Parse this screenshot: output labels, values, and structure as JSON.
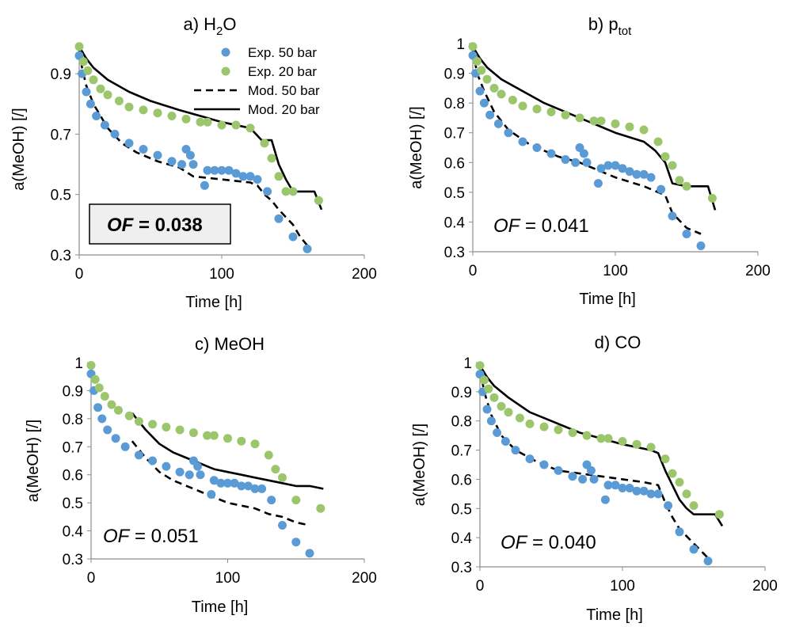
{
  "chart_data": [
    {
      "id": "a",
      "type": "scatter",
      "title": "a) H2O",
      "title_parts": {
        "prefix": "a) H",
        "sub": "2",
        "suffix": "O"
      },
      "xlabel": "Time [h]",
      "ylabel": "a(MeOH) [/]",
      "xlim": [
        0,
        200
      ],
      "ylim": [
        0.3,
        1.0
      ],
      "xticks": [
        "0",
        "100",
        "200"
      ],
      "yticks": [
        "0.3",
        "0.5",
        "0.7",
        "0.9"
      ],
      "grid": false,
      "legend": {
        "position": "top-right",
        "entries": [
          "Exp. 50 bar",
          "Exp. 20 bar",
          "Mod. 50 bar",
          "Mod. 20 bar"
        ]
      },
      "of_annotation": {
        "label": "OF",
        "value": "= 0.038",
        "boxed": true,
        "bold": true
      },
      "series": [
        {
          "name": "Exp. 50 bar",
          "kind": "scatter",
          "color": "#5b9bd5",
          "x": [
            0,
            2,
            5,
            8,
            12,
            18,
            25,
            35,
            45,
            55,
            65,
            72,
            75,
            78,
            80,
            88,
            90,
            95,
            100,
            105,
            110,
            115,
            120,
            125,
            132,
            140,
            150,
            160
          ],
          "y": [
            0.96,
            0.9,
            0.84,
            0.8,
            0.76,
            0.73,
            0.7,
            0.67,
            0.65,
            0.63,
            0.61,
            0.6,
            0.65,
            0.63,
            0.6,
            0.53,
            0.58,
            0.58,
            0.58,
            0.58,
            0.57,
            0.56,
            0.56,
            0.55,
            0.51,
            0.42,
            0.36,
            0.32
          ]
        },
        {
          "name": "Exp. 20 bar",
          "kind": "scatter",
          "color": "#9bc66b",
          "x": [
            0,
            3,
            6,
            10,
            15,
            20,
            28,
            35,
            45,
            55,
            65,
            75,
            85,
            90,
            100,
            110,
            120,
            130,
            135,
            140,
            145,
            150,
            168
          ],
          "y": [
            0.99,
            0.94,
            0.91,
            0.88,
            0.85,
            0.83,
            0.81,
            0.79,
            0.78,
            0.77,
            0.76,
            0.75,
            0.74,
            0.74,
            0.73,
            0.73,
            0.72,
            0.67,
            0.62,
            0.56,
            0.51,
            0.51,
            0.48
          ]
        },
        {
          "name": "Mod. 50 bar",
          "kind": "dashed",
          "x": [
            0,
            2,
            5,
            10,
            20,
            30,
            40,
            55,
            70,
            80,
            100,
            120,
            125,
            130,
            135,
            140,
            150,
            155,
            162
          ],
          "y": [
            0.98,
            0.92,
            0.86,
            0.8,
            0.72,
            0.67,
            0.64,
            0.61,
            0.59,
            0.56,
            0.55,
            0.54,
            0.53,
            0.5,
            0.48,
            0.45,
            0.4,
            0.36,
            0.32
          ]
        },
        {
          "name": "Mod. 20 bar",
          "kind": "solid",
          "x": [
            0,
            5,
            10,
            20,
            35,
            50,
            70,
            85,
            100,
            120,
            124,
            128,
            135,
            140,
            145,
            150,
            160,
            165,
            170
          ],
          "y": [
            0.99,
            0.95,
            0.92,
            0.88,
            0.84,
            0.81,
            0.78,
            0.76,
            0.74,
            0.72,
            0.7,
            0.68,
            0.68,
            0.6,
            0.55,
            0.51,
            0.51,
            0.51,
            0.45
          ]
        }
      ]
    },
    {
      "id": "b",
      "type": "scatter",
      "title": "b) ptot",
      "title_parts": {
        "prefix": "b) p",
        "sub": "tot",
        "suffix": ""
      },
      "xlabel": "Time [h]",
      "ylabel": "a(MeOH) [/]",
      "xlim": [
        0,
        200
      ],
      "ylim": [
        0.3,
        1.0
      ],
      "xticks": [
        "0",
        "100",
        "200"
      ],
      "yticks": [
        "0.3",
        "0.4",
        "0.5",
        "0.6",
        "0.7",
        "0.8",
        "0.9",
        "1"
      ],
      "grid": false,
      "of_annotation": {
        "label": "OF",
        "value": "= 0.041",
        "boxed": false,
        "bold": false
      },
      "series": [
        {
          "name": "Exp. 50 bar",
          "kind": "scatter",
          "color": "#5b9bd5",
          "x": [
            0,
            2,
            5,
            8,
            12,
            18,
            25,
            35,
            45,
            55,
            65,
            72,
            75,
            78,
            80,
            88,
            90,
            95,
            100,
            105,
            110,
            115,
            120,
            125,
            132,
            140,
            150,
            160
          ],
          "y": [
            0.96,
            0.9,
            0.84,
            0.8,
            0.76,
            0.73,
            0.7,
            0.67,
            0.65,
            0.63,
            0.61,
            0.6,
            0.65,
            0.63,
            0.6,
            0.53,
            0.58,
            0.59,
            0.59,
            0.58,
            0.57,
            0.56,
            0.56,
            0.55,
            0.51,
            0.42,
            0.36,
            0.32
          ]
        },
        {
          "name": "Exp. 20 bar",
          "kind": "scatter",
          "color": "#9bc66b",
          "x": [
            0,
            3,
            6,
            10,
            15,
            20,
            28,
            35,
            45,
            55,
            65,
            75,
            85,
            90,
            100,
            110,
            120,
            130,
            135,
            140,
            145,
            150,
            168
          ],
          "y": [
            0.99,
            0.94,
            0.91,
            0.88,
            0.85,
            0.83,
            0.81,
            0.79,
            0.78,
            0.77,
            0.76,
            0.75,
            0.74,
            0.74,
            0.73,
            0.72,
            0.71,
            0.67,
            0.62,
            0.59,
            0.54,
            0.52,
            0.48
          ]
        },
        {
          "name": "Mod. 50 bar",
          "kind": "dashed",
          "x": [
            0,
            3,
            8,
            15,
            25,
            40,
            60,
            75,
            85,
            100,
            120,
            135,
            140,
            150,
            160
          ],
          "y": [
            0.98,
            0.9,
            0.84,
            0.77,
            0.71,
            0.66,
            0.62,
            0.6,
            0.58,
            0.55,
            0.52,
            0.49,
            0.43,
            0.38,
            0.36
          ]
        },
        {
          "name": "Mod. 20 bar",
          "kind": "solid",
          "x": [
            0,
            5,
            10,
            20,
            35,
            50,
            70,
            85,
            100,
            120,
            128,
            135,
            140,
            150,
            160,
            165,
            170
          ],
          "y": [
            0.99,
            0.95,
            0.92,
            0.88,
            0.84,
            0.8,
            0.76,
            0.73,
            0.7,
            0.67,
            0.64,
            0.6,
            0.53,
            0.52,
            0.52,
            0.52,
            0.44
          ]
        }
      ]
    },
    {
      "id": "c",
      "type": "scatter",
      "title": "c) MeOH",
      "title_parts": {
        "prefix": "c) MeOH",
        "sub": "",
        "suffix": ""
      },
      "xlabel": "Time [h]",
      "ylabel": "a(MeOH) [/]",
      "xlim": [
        0,
        200
      ],
      "ylim": [
        0.3,
        1.0
      ],
      "xticks": [
        "0",
        "100",
        "200"
      ],
      "yticks": [
        "0.3",
        "0.4",
        "0.5",
        "0.6",
        "0.7",
        "0.8",
        "0.9",
        "1"
      ],
      "grid": false,
      "of_annotation": {
        "label": "OF",
        "value": "= 0.051",
        "boxed": false,
        "bold": false
      },
      "series": [
        {
          "name": "Exp. 50 bar",
          "kind": "scatter",
          "color": "#5b9bd5",
          "x": [
            0,
            2,
            5,
            8,
            12,
            18,
            25,
            35,
            45,
            55,
            65,
            72,
            75,
            78,
            80,
            88,
            90,
            95,
            100,
            105,
            110,
            115,
            120,
            125,
            132,
            140,
            150,
            160
          ],
          "y": [
            0.96,
            0.9,
            0.84,
            0.8,
            0.76,
            0.73,
            0.7,
            0.67,
            0.65,
            0.63,
            0.61,
            0.6,
            0.65,
            0.63,
            0.6,
            0.53,
            0.58,
            0.57,
            0.57,
            0.57,
            0.56,
            0.56,
            0.55,
            0.55,
            0.51,
            0.42,
            0.36,
            0.32
          ]
        },
        {
          "name": "Exp. 20 bar",
          "kind": "scatter",
          "color": "#9bc66b",
          "x": [
            0,
            3,
            6,
            10,
            15,
            20,
            28,
            35,
            45,
            55,
            65,
            75,
            85,
            90,
            100,
            110,
            120,
            130,
            135,
            140,
            150,
            168
          ],
          "y": [
            0.99,
            0.94,
            0.91,
            0.88,
            0.85,
            0.83,
            0.81,
            0.79,
            0.78,
            0.77,
            0.76,
            0.75,
            0.74,
            0.74,
            0.73,
            0.72,
            0.71,
            0.67,
            0.62,
            0.59,
            0.51,
            0.48
          ]
        },
        {
          "name": "Mod. 50 bar",
          "kind": "dashed",
          "x": [
            30,
            40,
            50,
            60,
            70,
            80,
            90,
            100,
            110,
            120,
            130,
            140,
            150,
            160
          ],
          "y": [
            0.72,
            0.66,
            0.61,
            0.58,
            0.56,
            0.54,
            0.52,
            0.5,
            0.49,
            0.48,
            0.46,
            0.45,
            0.43,
            0.42
          ]
        },
        {
          "name": "Mod. 20 bar",
          "kind": "solid",
          "x": [
            30,
            40,
            50,
            60,
            70,
            80,
            90,
            100,
            110,
            120,
            130,
            140,
            150,
            160,
            170
          ],
          "y": [
            0.82,
            0.76,
            0.71,
            0.68,
            0.66,
            0.64,
            0.62,
            0.61,
            0.6,
            0.59,
            0.58,
            0.57,
            0.56,
            0.56,
            0.55
          ]
        }
      ]
    },
    {
      "id": "d",
      "type": "scatter",
      "title": "d) CO",
      "title_parts": {
        "prefix": "d) CO",
        "sub": "",
        "suffix": ""
      },
      "xlabel": "Time [h]",
      "ylabel": "a(MeOH) [/]",
      "xlim": [
        0,
        200
      ],
      "ylim": [
        0.3,
        1.0
      ],
      "xticks": [
        "0",
        "100",
        "200"
      ],
      "yticks": [
        "0.3",
        "0.4",
        "0.5",
        "0.6",
        "0.7",
        "0.8",
        "0.9",
        "1"
      ],
      "grid": false,
      "of_annotation": {
        "label": "OF",
        "value": "= 0.040",
        "boxed": false,
        "bold": false
      },
      "series": [
        {
          "name": "Exp. 50 bar",
          "kind": "scatter",
          "color": "#5b9bd5",
          "x": [
            0,
            2,
            5,
            8,
            12,
            18,
            25,
            35,
            45,
            55,
            65,
            72,
            75,
            78,
            80,
            88,
            90,
            95,
            100,
            105,
            110,
            115,
            120,
            125,
            132,
            140,
            150,
            160
          ],
          "y": [
            0.96,
            0.9,
            0.84,
            0.8,
            0.76,
            0.73,
            0.7,
            0.67,
            0.65,
            0.63,
            0.61,
            0.6,
            0.65,
            0.63,
            0.6,
            0.53,
            0.58,
            0.58,
            0.57,
            0.57,
            0.56,
            0.56,
            0.55,
            0.55,
            0.51,
            0.42,
            0.36,
            0.32
          ]
        },
        {
          "name": "Exp. 20 bar",
          "kind": "scatter",
          "color": "#9bc66b",
          "x": [
            0,
            3,
            6,
            10,
            15,
            20,
            28,
            35,
            45,
            55,
            65,
            75,
            85,
            90,
            100,
            110,
            120,
            130,
            135,
            140,
            145,
            150,
            168
          ],
          "y": [
            0.99,
            0.94,
            0.91,
            0.88,
            0.85,
            0.83,
            0.81,
            0.79,
            0.78,
            0.77,
            0.76,
            0.75,
            0.74,
            0.74,
            0.73,
            0.72,
            0.71,
            0.67,
            0.62,
            0.59,
            0.55,
            0.51,
            0.48
          ]
        },
        {
          "name": "Mod. 50 bar",
          "kind": "dashed",
          "x": [
            0,
            3,
            8,
            15,
            25,
            40,
            55,
            70,
            85,
            100,
            115,
            125,
            130,
            135,
            140,
            150,
            160
          ],
          "y": [
            0.98,
            0.9,
            0.82,
            0.75,
            0.7,
            0.66,
            0.63,
            0.62,
            0.61,
            0.6,
            0.59,
            0.58,
            0.52,
            0.47,
            0.43,
            0.38,
            0.33
          ]
        },
        {
          "name": "Mod. 20 bar",
          "kind": "solid",
          "x": [
            0,
            5,
            10,
            20,
            35,
            50,
            70,
            85,
            100,
            120,
            125,
            130,
            135,
            140,
            145,
            150,
            160,
            165,
            170
          ],
          "y": [
            0.99,
            0.95,
            0.92,
            0.88,
            0.83,
            0.8,
            0.76,
            0.74,
            0.72,
            0.7,
            0.69,
            0.63,
            0.58,
            0.53,
            0.5,
            0.48,
            0.48,
            0.48,
            0.44
          ]
        }
      ]
    }
  ]
}
